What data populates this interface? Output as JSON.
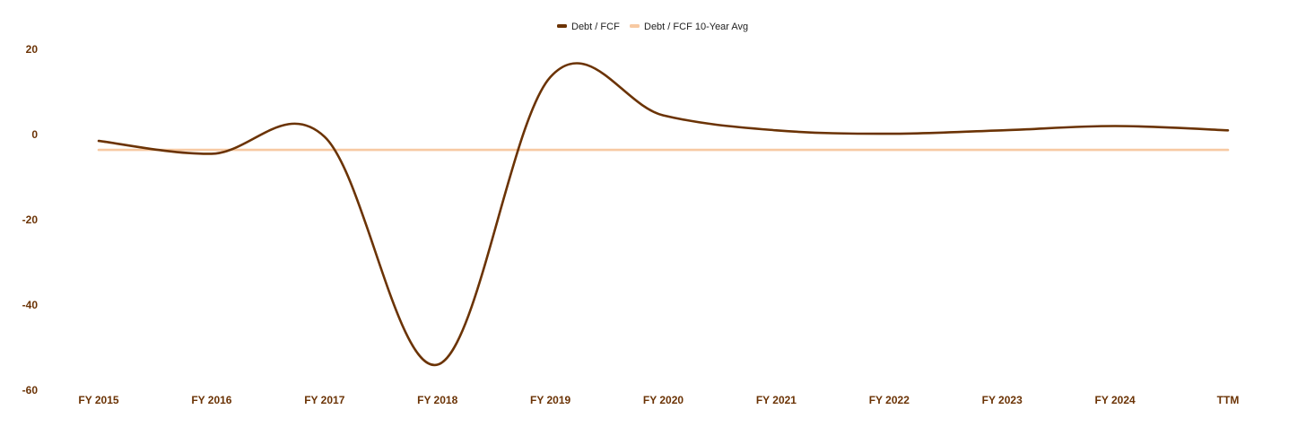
{
  "chart_data": {
    "type": "line",
    "categories": [
      "FY 2015",
      "FY 2016",
      "FY 2017",
      "FY 2018",
      "FY 2019",
      "FY 2020",
      "FY 2021",
      "FY 2022",
      "FY 2023",
      "FY 2024",
      "TTM"
    ],
    "series": [
      {
        "name": "Debt / FCF",
        "values": [
          -1.5,
          -4.5,
          -0.5,
          -54.0,
          13.5,
          4.5,
          1.0,
          0.2,
          1.0,
          2.0,
          1.0
        ],
        "color": "#6b3305"
      },
      {
        "name": "Debt / FCF 10-Year Avg",
        "values": [
          -3.6,
          -3.6,
          -3.6,
          -3.6,
          -3.6,
          -3.6,
          -3.6,
          -3.6,
          -3.6,
          -3.6,
          -3.6
        ],
        "color": "#f7c9a2"
      }
    ],
    "y_ticks": [
      "20",
      "0",
      "-20",
      "-40",
      "-60"
    ],
    "ylim": [
      -60,
      20
    ],
    "legend_position": "top-center",
    "grid": false
  }
}
